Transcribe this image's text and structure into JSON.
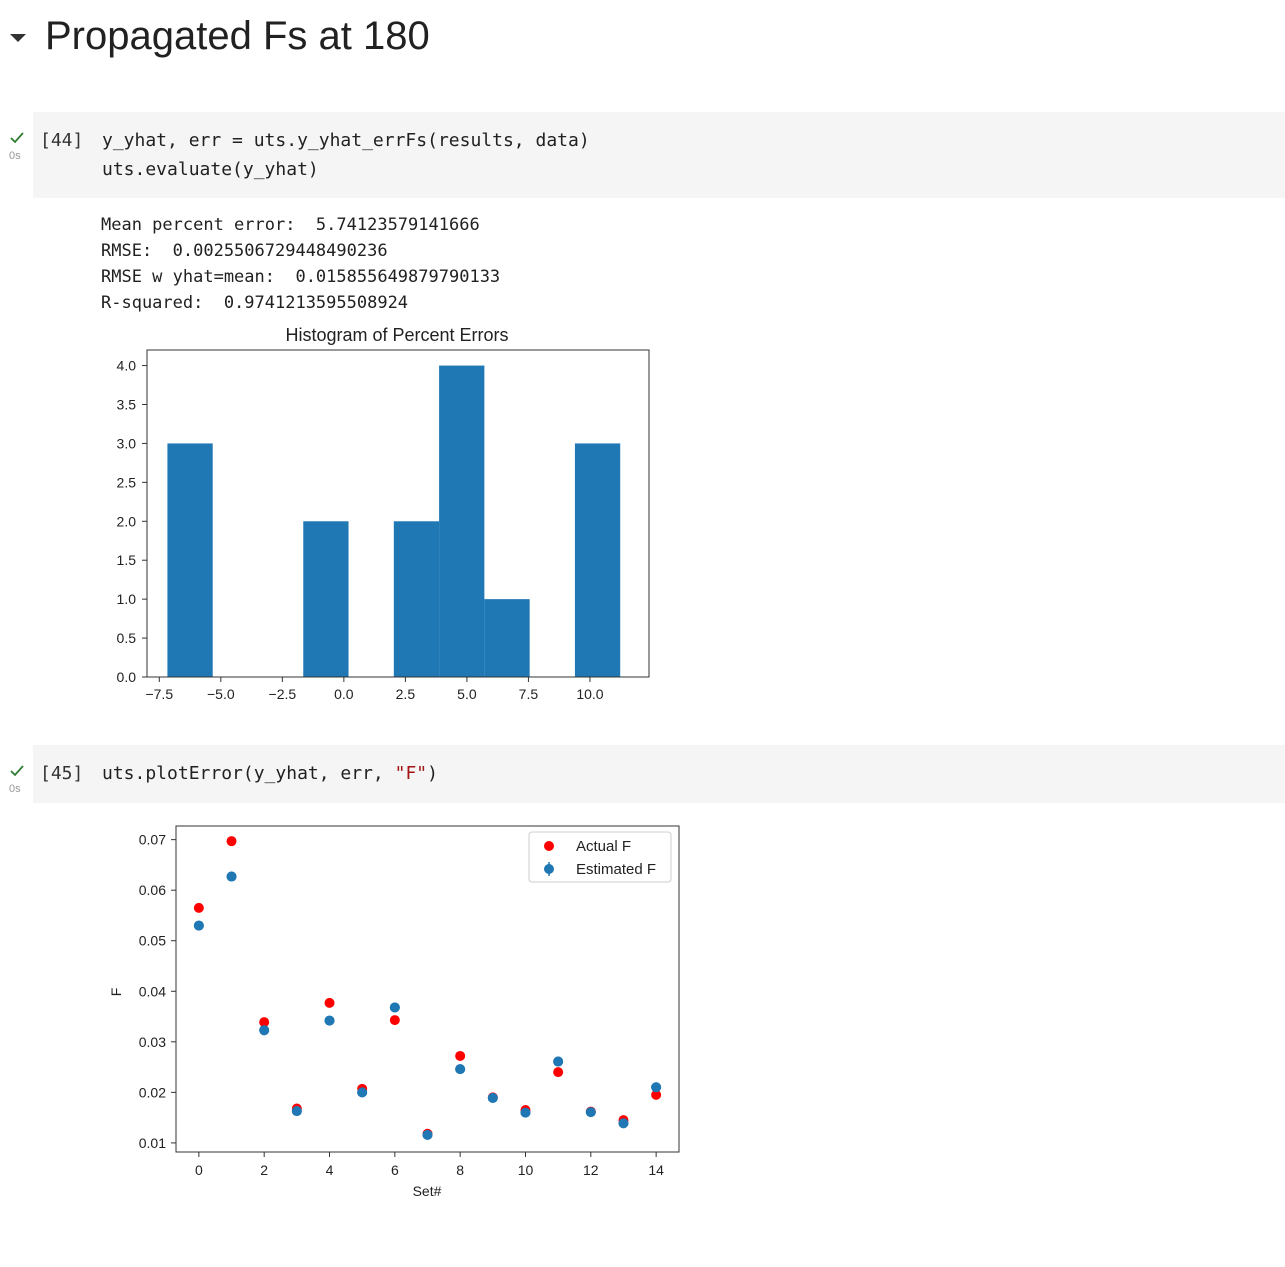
{
  "section": {
    "title": "Propagated Fs at 180",
    "collapse_icon": "caret-down-icon"
  },
  "cells": [
    {
      "exec_count": "[44]",
      "exec_time": "0s",
      "status_icon": "check-icon",
      "code_lines": [
        "y_yhat, err = uts.y_yhat_errFs(results, data)",
        "uts.evaluate(y_yhat)"
      ],
      "output_lines": [
        "Mean percent error:  5.74123579141666",
        "RMSE:  0.0025506729448490236",
        "RMSE w yhat=mean:  0.015855649879790133",
        "R-squared:  0.9741213595508924"
      ]
    },
    {
      "exec_count": "[45]",
      "exec_time": "0s",
      "status_icon": "check-icon",
      "code_prefix": "uts.plotError(y_yhat, err, ",
      "code_string": "\"F\"",
      "code_suffix": ")"
    }
  ],
  "colors": {
    "bar": "#1f77b4",
    "actual": "#ff0000",
    "estimated": "#1f77b4",
    "check": "#2e7d32"
  },
  "chart_data": [
    {
      "type": "bar",
      "title": "Histogram of Percent Errors",
      "xlabel": "",
      "ylabel": "",
      "bins": [
        {
          "x0": -7.17,
          "x1": -5.33,
          "count": 3
        },
        {
          "x0": -5.33,
          "x1": -3.49,
          "count": 0
        },
        {
          "x0": -3.49,
          "x1": -1.65,
          "count": 0
        },
        {
          "x0": -1.65,
          "x1": 0.19,
          "count": 2
        },
        {
          "x0": 0.19,
          "x1": 2.03,
          "count": 0
        },
        {
          "x0": 2.03,
          "x1": 3.87,
          "count": 2
        },
        {
          "x0": 3.87,
          "x1": 5.71,
          "count": 4
        },
        {
          "x0": 5.71,
          "x1": 7.55,
          "count": 1
        },
        {
          "x0": 7.55,
          "x1": 9.39,
          "count": 0
        },
        {
          "x0": 9.39,
          "x1": 11.23,
          "count": 3
        }
      ],
      "xlim": [
        -8.0,
        12.4
      ],
      "ylim": [
        0,
        4.2
      ],
      "xticks": [
        -7.5,
        -5.0,
        -2.5,
        0.0,
        2.5,
        5.0,
        7.5,
        10.0
      ],
      "xtick_labels": [
        "−7.5",
        "−5.0",
        "−2.5",
        "0.0",
        "2.5",
        "5.0",
        "7.5",
        "10.0"
      ],
      "yticks": [
        0.0,
        0.5,
        1.0,
        1.5,
        2.0,
        2.5,
        3.0,
        3.5,
        4.0
      ],
      "ytick_labels": [
        "0.0",
        "0.5",
        "1.0",
        "1.5",
        "2.0",
        "2.5",
        "3.0",
        "3.5",
        "4.0"
      ]
    },
    {
      "type": "scatter",
      "title": "",
      "xlabel": "Set#",
      "ylabel": "F",
      "x": [
        0,
        1,
        2,
        3,
        4,
        5,
        6,
        7,
        8,
        9,
        10,
        11,
        12,
        13,
        14
      ],
      "series": [
        {
          "name": "Actual F",
          "values": [
            0.0565,
            0.0697,
            0.0339,
            0.0168,
            0.0377,
            0.0207,
            0.0343,
            0.0118,
            0.0272,
            0.019,
            0.0165,
            0.024,
            0.0162,
            0.0145,
            0.0195
          ]
        },
        {
          "name": "Estimated F",
          "values": [
            0.053,
            0.0627,
            0.0323,
            0.0163,
            0.0342,
            0.02,
            0.0368,
            0.0116,
            0.0246,
            0.0189,
            0.016,
            0.0261,
            0.0161,
            0.0139,
            0.021
          ],
          "errors": [
            0.0003,
            0.0008,
            0.0004,
            0.0002,
            0.0004,
            0.0002,
            0.0004,
            0.0001,
            0.0003,
            0.0002,
            0.0002,
            0.0003,
            0.0002,
            0.0002,
            0.0003
          ]
        }
      ],
      "legend": "top-right",
      "xlim": [
        -0.7,
        14.7
      ],
      "ylim": [
        0.0082,
        0.0727
      ],
      "xticks": [
        0,
        2,
        4,
        6,
        8,
        10,
        12,
        14
      ],
      "xtick_labels": [
        "0",
        "2",
        "4",
        "6",
        "8",
        "10",
        "12",
        "14"
      ],
      "yticks": [
        0.01,
        0.02,
        0.03,
        0.04,
        0.05,
        0.06,
        0.07
      ],
      "ytick_labels": [
        "0.01",
        "0.02",
        "0.03",
        "0.04",
        "0.05",
        "0.06",
        "0.07"
      ]
    }
  ]
}
